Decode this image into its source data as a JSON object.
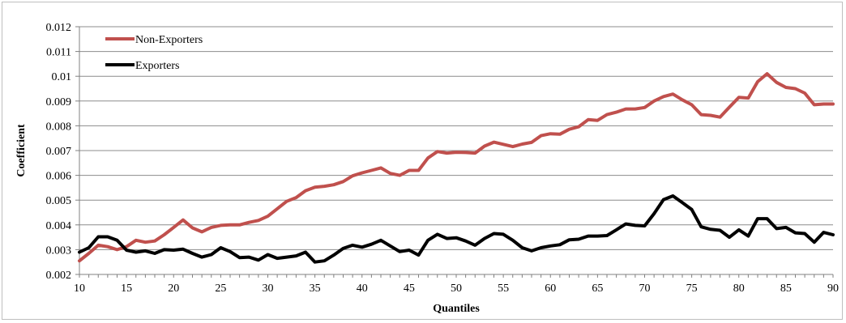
{
  "chart_data": {
    "type": "line",
    "title": "",
    "xlabel": "Quantiles",
    "ylabel": "Coefficient",
    "xlim": [
      10,
      90
    ],
    "ylim": [
      0.002,
      0.012
    ],
    "xticks": [
      10,
      15,
      20,
      25,
      30,
      35,
      40,
      45,
      50,
      55,
      60,
      65,
      70,
      75,
      80,
      85,
      90
    ],
    "yticks": [
      0.002,
      0.003,
      0.004,
      0.005,
      0.006,
      0.007,
      0.008,
      0.009,
      0.01,
      0.011,
      0.012
    ],
    "ytick_labels": [
      "0.002",
      "0.003",
      "0.004",
      "0.005",
      "0.006",
      "0.007",
      "0.008",
      "0.009",
      "0.01",
      "0.011",
      "0.012"
    ],
    "grid": "horizontal",
    "legend": "top-left",
    "x": [
      10,
      11,
      12,
      13,
      14,
      15,
      16,
      17,
      18,
      19,
      20,
      21,
      22,
      23,
      24,
      25,
      26,
      27,
      28,
      29,
      30,
      31,
      32,
      33,
      34,
      35,
      36,
      37,
      38,
      39,
      40,
      41,
      42,
      43,
      44,
      45,
      46,
      47,
      48,
      49,
      50,
      51,
      52,
      53,
      54,
      55,
      56,
      57,
      58,
      59,
      60,
      61,
      62,
      63,
      64,
      65,
      66,
      67,
      68,
      69,
      70,
      71,
      72,
      73,
      74,
      75,
      76,
      77,
      78,
      79,
      80,
      81,
      82,
      83,
      84,
      85,
      86,
      87,
      88,
      89,
      90
    ],
    "series": [
      {
        "name": "Non-Exporters",
        "color": "#c0504d",
        "values": [
          0.00255,
          0.00285,
          0.00318,
          0.00312,
          0.003,
          0.00312,
          0.00338,
          0.0033,
          0.00335,
          0.0036,
          0.0039,
          0.0042,
          0.00388,
          0.00372,
          0.0039,
          0.00398,
          0.004,
          0.004,
          0.0041,
          0.00418,
          0.00435,
          0.00465,
          0.00495,
          0.0051,
          0.00538,
          0.00552,
          0.00556,
          0.00562,
          0.00575,
          0.00598,
          0.0061,
          0.0062,
          0.0063,
          0.00608,
          0.006,
          0.0062,
          0.0062,
          0.0067,
          0.00696,
          0.0069,
          0.00693,
          0.00692,
          0.0069,
          0.00718,
          0.00734,
          0.00725,
          0.00716,
          0.00726,
          0.00733,
          0.0076,
          0.00768,
          0.00766,
          0.00786,
          0.00796,
          0.00825,
          0.00822,
          0.00845,
          0.00855,
          0.00868,
          0.00868,
          0.00874,
          0.009,
          0.00918,
          0.00928,
          0.00905,
          0.00885,
          0.00845,
          0.00842,
          0.00835,
          0.00875,
          0.00915,
          0.00912,
          0.00978,
          0.0101,
          0.00975,
          0.00955,
          0.0095,
          0.00932,
          0.00885,
          0.00888,
          0.00888
        ]
      },
      {
        "name": "Exporters",
        "color": "#000000",
        "values": [
          0.0029,
          0.00308,
          0.00352,
          0.00352,
          0.00338,
          0.00298,
          0.0029,
          0.00295,
          0.00285,
          0.003,
          0.00298,
          0.00302,
          0.00285,
          0.0027,
          0.0028,
          0.00308,
          0.00292,
          0.00268,
          0.0027,
          0.00258,
          0.0028,
          0.00265,
          0.0027,
          0.00275,
          0.0029,
          0.0025,
          0.00255,
          0.00278,
          0.00305,
          0.00318,
          0.0031,
          0.00322,
          0.00338,
          0.00315,
          0.00292,
          0.00298,
          0.00278,
          0.00338,
          0.00362,
          0.00345,
          0.00348,
          0.00335,
          0.00318,
          0.00345,
          0.00365,
          0.00362,
          0.00338,
          0.00308,
          0.00295,
          0.00308,
          0.00315,
          0.0032,
          0.0034,
          0.00342,
          0.00355,
          0.00355,
          0.00357,
          0.0038,
          0.00404,
          0.00398,
          0.00396,
          0.00445,
          0.00502,
          0.00517,
          0.0049,
          0.00462,
          0.00392,
          0.00382,
          0.00378,
          0.0035,
          0.0038,
          0.00355,
          0.00425,
          0.00425,
          0.00385,
          0.0039,
          0.00368,
          0.00365,
          0.0033,
          0.0037,
          0.0036
        ]
      }
    ]
  }
}
